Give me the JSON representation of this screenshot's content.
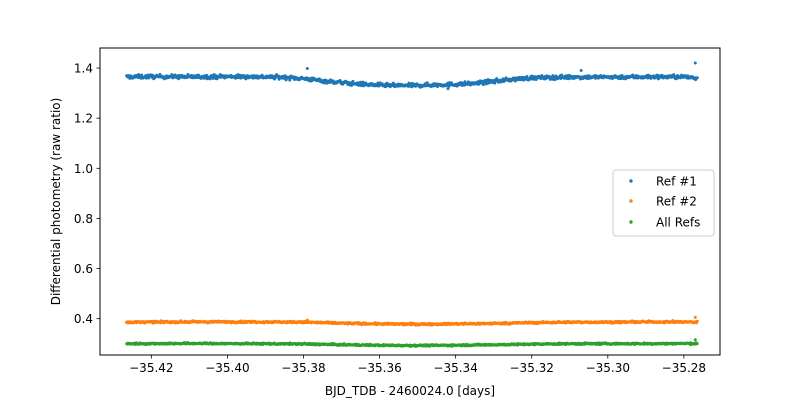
{
  "chart_data": {
    "type": "scatter",
    "xlabel": "BJD_TDB - 2460024.0 [days]",
    "ylabel": "Differential photometry (raw ratio)",
    "xlim": [
      -35.4335,
      -35.2705
    ],
    "ylim": [
      0.255,
      1.48
    ],
    "x_ticks": [
      -35.42,
      -35.4,
      -35.38,
      -35.36,
      -35.34,
      -35.32,
      -35.3,
      -35.28
    ],
    "x_tick_labels": [
      "−35.42",
      "−35.40",
      "−35.38",
      "−35.36",
      "−35.34",
      "−35.32",
      "−35.30",
      "−35.28"
    ],
    "y_ticks": [
      0.4,
      0.6,
      0.8,
      1.0,
      1.2,
      1.4
    ],
    "y_tick_labels": [
      "0.4",
      "0.6",
      "0.8",
      "1.0",
      "1.2",
      "1.4"
    ],
    "legend_position": "center-right",
    "series": [
      {
        "name": "Ref #1",
        "color": "#1f77b4",
        "x": [
          -35.4265,
          -35.42,
          -35.41,
          -35.4,
          -35.39,
          -35.385,
          -35.38,
          -35.375,
          -35.37,
          -35.365,
          -35.36,
          -35.355,
          -35.35,
          -35.345,
          -35.34,
          -35.335,
          -35.33,
          -35.325,
          -35.32,
          -35.31,
          -35.3,
          -35.29,
          -35.28,
          -35.2765
        ],
        "y": [
          1.365,
          1.366,
          1.365,
          1.366,
          1.365,
          1.363,
          1.358,
          1.349,
          1.342,
          1.336,
          1.332,
          1.33,
          1.331,
          1.333,
          1.335,
          1.339,
          1.347,
          1.355,
          1.361,
          1.364,
          1.364,
          1.365,
          1.365,
          1.36
        ],
        "outliers": [
          [
            -35.379,
            1.398
          ],
          [
            -35.307,
            1.39
          ],
          [
            -35.277,
            1.42
          ],
          [
            -35.342,
            1.318
          ]
        ]
      },
      {
        "name": "Ref #2",
        "color": "#ff7f0e",
        "x": [
          -35.4265,
          -35.41,
          -35.39,
          -35.38,
          -35.37,
          -35.36,
          -35.35,
          -35.34,
          -35.33,
          -35.32,
          -35.31,
          -35.3,
          -35.29,
          -35.28,
          -35.2765
        ],
        "y": [
          0.386,
          0.387,
          0.387,
          0.386,
          0.382,
          0.379,
          0.378,
          0.379,
          0.381,
          0.384,
          0.386,
          0.386,
          0.387,
          0.387,
          0.386
        ],
        "outliers": [
          [
            -35.379,
            0.394
          ],
          [
            -35.277,
            0.405
          ]
        ]
      },
      {
        "name": "All Refs",
        "color": "#2ca02c",
        "x": [
          -35.4265,
          -35.41,
          -35.39,
          -35.38,
          -35.37,
          -35.36,
          -35.35,
          -35.34,
          -35.33,
          -35.32,
          -35.31,
          -35.3,
          -35.29,
          -35.28,
          -35.2765
        ],
        "y": [
          0.3,
          0.301,
          0.3,
          0.299,
          0.296,
          0.294,
          0.293,
          0.294,
          0.296,
          0.298,
          0.3,
          0.3,
          0.3,
          0.301,
          0.3
        ],
        "outliers": [
          [
            -35.277,
            0.316
          ]
        ]
      }
    ]
  }
}
